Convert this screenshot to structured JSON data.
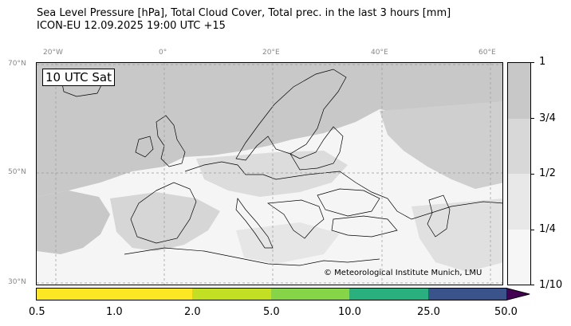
{
  "header": {
    "title_line1": "Sea Level Pressure [hPa], Total Cloud Cover, Total prec. in the last 3 hours [mm]",
    "title_line2": "ICON-EU 12.09.2025 19:00 UTC +15"
  },
  "map": {
    "time_label": "10 UTC Sat",
    "credit": "© Meteorological Institute Munich, LMU",
    "lon_labels": [
      "20°W",
      "0°",
      "20°E",
      "40°E",
      "60°E"
    ],
    "lat_labels": [
      "70°N",
      "50°N",
      "30°N"
    ],
    "colors": {
      "cloud_dense": "#c8c8c8",
      "cloud_light": "#e2e2e2",
      "clear": "#f5f5f5",
      "coast": "#000000",
      "grid": "#999999"
    }
  },
  "cloud_cover_colorbar": {
    "tick_labels": [
      "1",
      "3/4",
      "1/2",
      "1/4",
      "1/10"
    ],
    "colors": [
      "#c8c8c8",
      "#d8d8d8",
      "#e8e8e8",
      "#f6f6f6"
    ]
  },
  "precip_colorbar": {
    "tick_labels": [
      "0.5",
      "1.0",
      "2.0",
      "5.0",
      "10.0",
      "25.0",
      "50.0"
    ],
    "colors": [
      "#fde725",
      "#fde725",
      "#c2df23",
      "#86d549",
      "#2ab07f",
      "#3a538b",
      "#440154"
    ]
  }
}
